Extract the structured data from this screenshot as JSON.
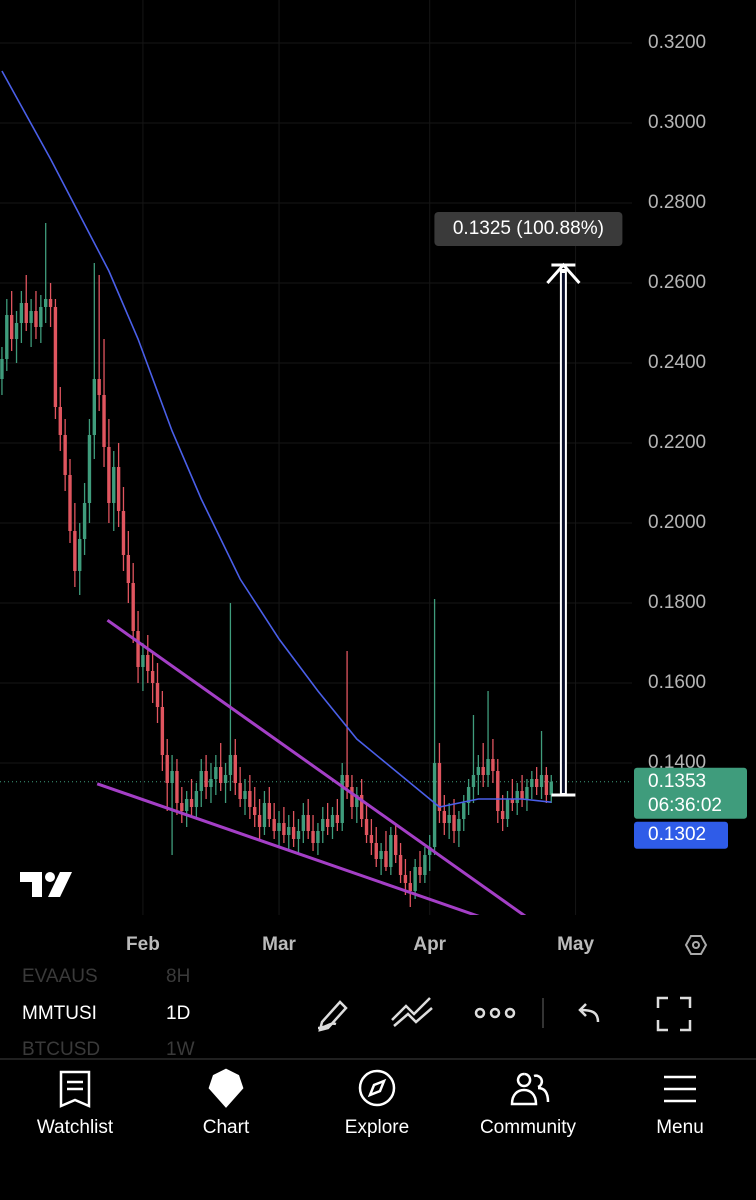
{
  "chart_data": {
    "type": "candlestick",
    "x": [
      2,
      3,
      4,
      5,
      6,
      7,
      8,
      9,
      10,
      11,
      12,
      13,
      14,
      15,
      16,
      17,
      18,
      19,
      20,
      21,
      22,
      23,
      24,
      25,
      26,
      27,
      28,
      29,
      30,
      31,
      32,
      33,
      34,
      35,
      36,
      37,
      38,
      39,
      40,
      41,
      42,
      43,
      44,
      45,
      46,
      47,
      48,
      49,
      50,
      51,
      52,
      53,
      54,
      55,
      56,
      57,
      58,
      59,
      60,
      61,
      62,
      63,
      64,
      65,
      66,
      67,
      68,
      69,
      70,
      71,
      72,
      73,
      74,
      75,
      76,
      77,
      78,
      79,
      80,
      81,
      82,
      83,
      84,
      85,
      86,
      87,
      88,
      89,
      90,
      91,
      92,
      93,
      94,
      95,
      96,
      97,
      98,
      99,
      100,
      101,
      102,
      103,
      104,
      105,
      106,
      107,
      108,
      109,
      110,
      111,
      112,
      113,
      114,
      115
    ],
    "candles": [
      [
        0.236,
        0.244,
        0.232,
        0.241
      ],
      [
        0.241,
        0.256,
        0.238,
        0.252
      ],
      [
        0.252,
        0.258,
        0.243,
        0.246
      ],
      [
        0.246,
        0.253,
        0.24,
        0.25
      ],
      [
        0.25,
        0.258,
        0.245,
        0.255
      ],
      [
        0.255,
        0.262,
        0.248,
        0.25
      ],
      [
        0.25,
        0.256,
        0.244,
        0.253
      ],
      [
        0.253,
        0.258,
        0.246,
        0.249
      ],
      [
        0.249,
        0.257,
        0.245,
        0.254
      ],
      [
        0.254,
        0.275,
        0.25,
        0.256
      ],
      [
        0.256,
        0.26,
        0.249,
        0.254
      ],
      [
        0.254,
        0.256,
        0.226,
        0.229
      ],
      [
        0.229,
        0.234,
        0.218,
        0.222
      ],
      [
        0.222,
        0.226,
        0.208,
        0.212
      ],
      [
        0.212,
        0.216,
        0.195,
        0.198
      ],
      [
        0.198,
        0.205,
        0.184,
        0.188
      ],
      [
        0.188,
        0.2,
        0.182,
        0.196
      ],
      [
        0.196,
        0.21,
        0.192,
        0.205
      ],
      [
        0.205,
        0.226,
        0.2,
        0.222
      ],
      [
        0.222,
        0.265,
        0.216,
        0.236
      ],
      [
        0.236,
        0.262,
        0.228,
        0.232
      ],
      [
        0.232,
        0.246,
        0.214,
        0.219
      ],
      [
        0.219,
        0.226,
        0.2,
        0.205
      ],
      [
        0.205,
        0.218,
        0.198,
        0.214
      ],
      [
        0.214,
        0.22,
        0.199,
        0.203
      ],
      [
        0.203,
        0.209,
        0.188,
        0.192
      ],
      [
        0.192,
        0.198,
        0.18,
        0.185
      ],
      [
        0.185,
        0.19,
        0.17,
        0.173
      ],
      [
        0.173,
        0.178,
        0.16,
        0.164
      ],
      [
        0.164,
        0.17,
        0.158,
        0.167
      ],
      [
        0.167,
        0.172,
        0.16,
        0.163
      ],
      [
        0.163,
        0.168,
        0.155,
        0.16
      ],
      [
        0.16,
        0.165,
        0.15,
        0.154
      ],
      [
        0.154,
        0.158,
        0.138,
        0.142
      ],
      [
        0.142,
        0.146,
        0.128,
        0.135
      ],
      [
        0.135,
        0.142,
        0.117,
        0.138
      ],
      [
        0.138,
        0.141,
        0.127,
        0.13
      ],
      [
        0.13,
        0.134,
        0.125,
        0.128
      ],
      [
        0.128,
        0.133,
        0.124,
        0.131
      ],
      [
        0.131,
        0.136,
        0.127,
        0.129
      ],
      [
        0.129,
        0.135,
        0.126,
        0.133
      ],
      [
        0.133,
        0.141,
        0.129,
        0.138
      ],
      [
        0.138,
        0.142,
        0.131,
        0.134
      ],
      [
        0.134,
        0.14,
        0.13,
        0.136
      ],
      [
        0.136,
        0.142,
        0.132,
        0.139
      ],
      [
        0.139,
        0.145,
        0.133,
        0.135
      ],
      [
        0.135,
        0.14,
        0.13,
        0.137
      ],
      [
        0.137,
        0.18,
        0.133,
        0.142
      ],
      [
        0.142,
        0.146,
        0.132,
        0.135
      ],
      [
        0.135,
        0.139,
        0.129,
        0.131
      ],
      [
        0.131,
        0.136,
        0.127,
        0.133
      ],
      [
        0.133,
        0.137,
        0.126,
        0.129
      ],
      [
        0.129,
        0.134,
        0.124,
        0.127
      ],
      [
        0.127,
        0.131,
        0.121,
        0.124
      ],
      [
        0.124,
        0.133,
        0.122,
        0.13
      ],
      [
        0.13,
        0.134,
        0.124,
        0.126
      ],
      [
        0.126,
        0.13,
        0.121,
        0.123
      ],
      [
        0.123,
        0.128,
        0.119,
        0.125
      ],
      [
        0.125,
        0.129,
        0.12,
        0.122
      ],
      [
        0.122,
        0.127,
        0.118,
        0.124
      ],
      [
        0.124,
        0.128,
        0.119,
        0.121
      ],
      [
        0.121,
        0.126,
        0.117,
        0.123
      ],
      [
        0.123,
        0.13,
        0.12,
        0.127
      ],
      [
        0.127,
        0.131,
        0.121,
        0.123
      ],
      [
        0.123,
        0.127,
        0.118,
        0.12
      ],
      [
        0.12,
        0.125,
        0.117,
        0.123
      ],
      [
        0.123,
        0.129,
        0.12,
        0.126
      ],
      [
        0.126,
        0.13,
        0.122,
        0.124
      ],
      [
        0.124,
        0.129,
        0.121,
        0.127
      ],
      [
        0.127,
        0.131,
        0.123,
        0.125
      ],
      [
        0.125,
        0.14,
        0.123,
        0.137
      ],
      [
        0.137,
        0.168,
        0.131,
        0.134
      ],
      [
        0.134,
        0.137,
        0.126,
        0.129
      ],
      [
        0.129,
        0.134,
        0.125,
        0.132
      ],
      [
        0.132,
        0.136,
        0.124,
        0.126
      ],
      [
        0.126,
        0.13,
        0.12,
        0.122
      ],
      [
        0.122,
        0.126,
        0.117,
        0.12
      ],
      [
        0.12,
        0.124,
        0.114,
        0.116
      ],
      [
        0.116,
        0.12,
        0.112,
        0.118
      ],
      [
        0.118,
        0.123,
        0.113,
        0.114
      ],
      [
        0.114,
        0.124,
        0.112,
        0.122
      ],
      [
        0.122,
        0.125,
        0.115,
        0.117
      ],
      [
        0.117,
        0.12,
        0.11,
        0.112
      ],
      [
        0.112,
        0.116,
        0.107,
        0.11
      ],
      [
        0.11,
        0.113,
        0.104,
        0.108
      ],
      [
        0.108,
        0.116,
        0.106,
        0.114
      ],
      [
        0.114,
        0.118,
        0.11,
        0.112
      ],
      [
        0.112,
        0.119,
        0.11,
        0.117
      ],
      [
        0.117,
        0.122,
        0.113,
        0.119
      ],
      [
        0.119,
        0.181,
        0.117,
        0.14
      ],
      [
        0.14,
        0.145,
        0.125,
        0.128
      ],
      [
        0.128,
        0.132,
        0.122,
        0.125
      ],
      [
        0.125,
        0.13,
        0.121,
        0.127
      ],
      [
        0.127,
        0.131,
        0.12,
        0.123
      ],
      [
        0.123,
        0.128,
        0.119,
        0.126
      ],
      [
        0.126,
        0.132,
        0.123,
        0.13
      ],
      [
        0.13,
        0.136,
        0.127,
        0.134
      ],
      [
        0.134,
        0.152,
        0.13,
        0.137
      ],
      [
        0.137,
        0.142,
        0.132,
        0.139
      ],
      [
        0.139,
        0.145,
        0.134,
        0.137
      ],
      [
        0.137,
        0.158,
        0.134,
        0.141
      ],
      [
        0.141,
        0.146,
        0.135,
        0.138
      ],
      [
        0.138,
        0.141,
        0.125,
        0.128
      ],
      [
        0.128,
        0.132,
        0.123,
        0.126
      ],
      [
        0.126,
        0.133,
        0.124,
        0.131
      ],
      [
        0.131,
        0.136,
        0.128,
        0.13
      ],
      [
        0.13,
        0.135,
        0.127,
        0.133
      ],
      [
        0.133,
        0.137,
        0.129,
        0.131
      ],
      [
        0.131,
        0.136,
        0.128,
        0.134
      ],
      [
        0.134,
        0.138,
        0.131,
        0.136
      ],
      [
        0.136,
        0.139,
        0.132,
        0.134
      ],
      [
        0.134,
        0.148,
        0.131,
        0.137
      ],
      [
        0.137,
        0.139,
        0.13,
        0.132
      ],
      [
        0.132,
        0.137,
        0.13,
        0.1353
      ]
    ],
    "up_color": "#3f9c7c",
    "down_color": "#e0555f",
    "moving_average": {
      "color": "#4a5fe8",
      "x": [
        2,
        12,
        18,
        24,
        30,
        37,
        43,
        51,
        59,
        67,
        75,
        84,
        92,
        100,
        109,
        115
      ],
      "values": [
        0.313,
        0.291,
        0.277,
        0.263,
        0.246,
        0.223,
        0.206,
        0.186,
        0.171,
        0.158,
        0.146,
        0.137,
        0.129,
        0.131,
        0.131,
        0.1302
      ]
    },
    "trendlines": {
      "color": "#a43fc6",
      "lines": [
        {
          "x": [
            23.7,
            109.9
          ],
          "values": [
            0.1757,
            0.1015
          ]
        },
        {
          "x": [
            21.6,
            101.2
          ],
          "values": [
            0.1348,
            0.1012
          ]
        }
      ]
    },
    "measure": {
      "x": 117.5,
      "from": 0.132,
      "to": 0.2645,
      "label": "0.1325 (100.88%)"
    },
    "last_price": {
      "value": 0.1353,
      "label": "0.1353",
      "countdown": "06:36:02",
      "color": "#3f9c7c"
    },
    "ma_price": {
      "value": 0.1302,
      "label": "0.1302",
      "color": "#2f5ce8"
    },
    "xlim": [
      1.6,
      131.2
    ],
    "ylim": [
      0.1,
      0.33
    ],
    "xticks": [
      {
        "value": 31,
        "label": "Feb"
      },
      {
        "value": 59,
        "label": "Mar"
      },
      {
        "value": 90,
        "label": "Apr"
      },
      {
        "value": 120,
        "label": "May"
      }
    ],
    "yticks": [
      {
        "value": 0.14,
        "label": "0.1400"
      },
      {
        "value": 0.16,
        "label": "0.1600"
      },
      {
        "value": 0.18,
        "label": "0.1800"
      },
      {
        "value": 0.2,
        "label": "0.2000"
      },
      {
        "value": 0.22,
        "label": "0.2200"
      },
      {
        "value": 0.24,
        "label": "0.2400"
      },
      {
        "value": 0.26,
        "label": "0.2600"
      },
      {
        "value": 0.28,
        "label": "0.2800"
      },
      {
        "value": 0.3,
        "label": "0.3000"
      },
      {
        "value": 0.32,
        "label": "0.3200"
      }
    ],
    "grid": true
  },
  "toolbar": {
    "symbol": "MMTUSI",
    "interval": "1D",
    "prev_symbol": "EVAAUS",
    "prev_interval": "8H",
    "next_symbol": "BTCUSD",
    "next_interval": "1W"
  },
  "nav": [
    "Watchlist",
    "Chart",
    "Explore",
    "Community",
    "Menu"
  ]
}
